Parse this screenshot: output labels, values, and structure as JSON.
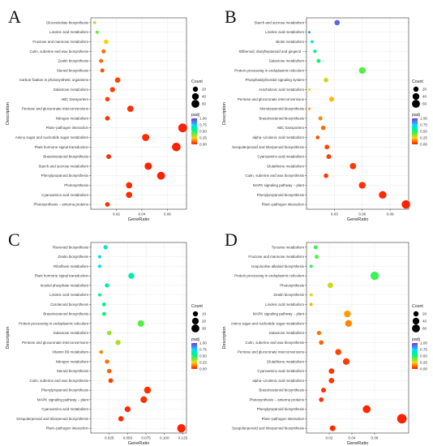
{
  "colors": {
    "low": "#ff1a00",
    "mid1": "#ffd000",
    "mid2": "#00ff66",
    "mid3": "#00d9ff",
    "high": "#8a2be2"
  },
  "chart_data": [
    {
      "type": "scatter",
      "panel": "A",
      "xlabel": "GeneRatio",
      "ylabel": "Description",
      "xlim": [
        0,
        0.075
      ],
      "xticks": [
        0.02,
        0.04,
        0.06
      ],
      "xtick_labels": [
        "0.02",
        "0.04",
        "0.06"
      ],
      "legend": {
        "count_title": "Count",
        "count_values": [
          20,
          40,
          60
        ],
        "count_labels": [
          "20",
          "40",
          "60"
        ],
        "count_range": [
          1,
          70
        ],
        "padj_title": "padj",
        "padj_values": [
          1.0,
          0.75,
          0.5,
          0.25,
          0.0
        ],
        "padj_labels": [
          "1.00",
          "0.75",
          "0.50",
          "0.25",
          "0.00"
        ]
      },
      "categories": [
        "Glucosinolate biosynthesis",
        "Linoleic acid metabolism",
        "Fructose and mannose metabolism",
        "Cutin, suberine and wax biosynthesis",
        "Zeatin biosynthesis",
        "Steroid biosynthesis",
        "Carbon fixation in photosynthetic organisms",
        "Galactose metabolism",
        "ABC transporters",
        "Pentose and glucuronate interconversions",
        "Nitrogen metabolism",
        "Plant−pathogen interaction",
        "Amino sugar and nucleotide sugar metabolism",
        "Plant hormone signal transduction",
        "Brassinosteroid biosynthesis",
        "Starch and sucrose metabolism",
        "Phenylpropanoid biosynthesis",
        "Photosynthesis",
        "Cyanoamino acid metabolism",
        "Photosynthesis − antenna proteins"
      ],
      "gene_ratio": [
        0.003,
        0.005,
        0.012,
        0.01,
        0.008,
        0.009,
        0.021,
        0.017,
        0.013,
        0.031,
        0.013,
        0.072,
        0.043,
        0.067,
        0.014,
        0.045,
        0.055,
        0.03,
        0.03,
        0.013
      ],
      "count": [
        3,
        5,
        13,
        11,
        9,
        10,
        23,
        19,
        14,
        34,
        14,
        78,
        47,
        73,
        15,
        49,
        60,
        33,
        33,
        14
      ],
      "padj": [
        0.35,
        0.4,
        0.25,
        0.12,
        0.1,
        0.08,
        0.06,
        0.05,
        0.05,
        0.03,
        0.03,
        0.01,
        0.02,
        0.01,
        0.02,
        0.01,
        0.01,
        0.02,
        0.02,
        0.03
      ]
    },
    {
      "type": "scatter",
      "panel": "B",
      "xlabel": "GeneRatio",
      "ylabel": "Description",
      "xlim": [
        0,
        0.11
      ],
      "xticks": [
        0.03,
        0.06,
        0.09
      ],
      "xtick_labels": [
        "0.03",
        "0.06",
        "0.09"
      ],
      "legend": {
        "count_title": "Count",
        "count_values": [
          20,
          40,
          60
        ],
        "count_labels": [
          "20",
          "40",
          "60"
        ],
        "count_range": [
          1,
          70
        ],
        "padj_title": "padj",
        "padj_values": [
          1.0,
          0.75,
          0.5,
          0.25,
          0.0
        ],
        "padj_labels": [
          "1.00",
          "0.75",
          "0.50",
          "0.25",
          "0.00"
        ]
      },
      "categories": [
        "Starch and sucrose metabolism",
        "Linoleic acid metabolism",
        "Biotin metabolism",
        "Stilbenoid, diarylheptanoid and gingerol −",
        "Galactose metabolism",
        "Protein processing in endoplasmic reticulum",
        "Phosphatidylinositol signaling system",
        "Arachidonic acid metabolism",
        "Pentose and glucuronate interconversions",
        "Monoterpenoid biosynthesis",
        "Brassinosteroid biosynthesis",
        "ABC transporters",
        "alpha−Linolenic acid metabolism",
        "Sesquiterpenoid and triterpenoid biosynthesis",
        "Cyanoamino acid metabolism",
        "Glutathione metabolism",
        "Cutin, suberine and wax biosynthesis",
        "MAPK signaling pathway − plant",
        "Phenylpropanoid biosynthesis",
        "Plant−pathogen interaction"
      ],
      "gene_ratio": [
        0.033,
        0.003,
        0.006,
        0.009,
        0.013,
        0.06,
        0.021,
        0.003,
        0.027,
        0.003,
        0.015,
        0.018,
        0.012,
        0.022,
        0.024,
        0.05,
        0.021,
        0.06,
        0.082,
        0.107
      ],
      "count": [
        22,
        2,
        4,
        6,
        9,
        40,
        14,
        2,
        18,
        2,
        10,
        12,
        8,
        15,
        16,
        33,
        14,
        40,
        54,
        70
      ],
      "padj": [
        0.92,
        0.85,
        0.62,
        0.55,
        0.52,
        0.42,
        0.3,
        0.25,
        0.22,
        0.18,
        0.15,
        0.1,
        0.08,
        0.06,
        0.05,
        0.04,
        0.04,
        0.03,
        0.02,
        0.01
      ]
    },
    {
      "type": "scatter",
      "panel": "C",
      "xlabel": "GeneRatio",
      "ylabel": "Description",
      "xlim": [
        0,
        0.13
      ],
      "xticks": [
        0.025,
        0.05,
        0.075,
        0.1,
        0.125
      ],
      "xtick_labels": [
        "0.025",
        "0.050",
        "0.075",
        "0.100",
        "0.125"
      ],
      "legend": {
        "count_title": "Count",
        "count_values": [
          10,
          20,
          30
        ],
        "count_labels": [
          "10",
          "20",
          "30"
        ],
        "count_range": [
          1,
          35
        ],
        "padj_title": "padj",
        "padj_values": [
          1.0,
          0.75,
          0.5,
          0.25,
          0.0
        ],
        "padj_labels": [
          "1.00",
          "0.75",
          "0.50",
          "0.25",
          "0.00"
        ]
      },
      "categories": [
        "Flavonoid biosynthesis",
        "Zeatin biosynthesis",
        "Riboflavin metabolism",
        "Plant hormone signal transduction",
        "Inositol phosphate metabolism",
        "Linoleic acid metabolism",
        "Carotenoid biosynthesis",
        "Brassinosteroid biosynthesis",
        "Protein processing in endoplasmic reticulum",
        "Galactose metabolism",
        "Pentose and glucuronate interconversions",
        "Vitamin B6 metabolism",
        "Nitrogen metabolism",
        "Steroid biosynthesis",
        "Cutin, suberine and wax biosynthesis",
        "Phenylpropanoid biosynthesis",
        "MAPK signaling pathway − plant",
        "Cyanoamino acid metabolism",
        "Sesquiterpenoid and triterpenoid biosynthesis",
        "Plant−pathogen interaction"
      ],
      "gene_ratio": [
        0.02,
        0.012,
        0.012,
        0.055,
        0.022,
        0.012,
        0.018,
        0.018,
        0.068,
        0.025,
        0.037,
        0.014,
        0.022,
        0.025,
        0.027,
        0.077,
        0.072,
        0.05,
        0.041,
        0.123
      ],
      "count": [
        6,
        3,
        3,
        15,
        6,
        3,
        5,
        5,
        19,
        7,
        10,
        4,
        6,
        7,
        8,
        21,
        20,
        14,
        11,
        34
      ],
      "padj": [
        0.65,
        0.7,
        0.72,
        0.62,
        0.6,
        0.58,
        0.55,
        0.52,
        0.42,
        0.35,
        0.33,
        0.15,
        0.12,
        0.1,
        0.05,
        0.03,
        0.03,
        0.02,
        0.02,
        0.01
      ]
    },
    {
      "type": "scatter",
      "panel": "D",
      "xlabel": "GeneRatio",
      "ylabel": "Description",
      "xlim": [
        0,
        0.09
      ],
      "xticks": [
        0.02,
        0.04,
        0.06
      ],
      "xtick_labels": [
        "0.02",
        "0.04",
        "0.06"
      ],
      "legend": {
        "count_title": "Count",
        "count_values": [
          20,
          40,
          60
        ],
        "count_labels": [
          "20",
          "40",
          "60"
        ],
        "count_range": [
          1,
          70
        ],
        "padj_title": "padj",
        "padj_values": [
          1.0,
          0.75,
          0.5,
          0.25,
          0.0
        ],
        "padj_labels": [
          "1.00",
          "0.75",
          "0.50",
          "0.25",
          "0.00"
        ]
      },
      "categories": [
        "Tyrosine metabolism",
        "Fructose and mannose metabolism",
        "Isoquinoline alkaloid biosynthesis",
        "Protein processing in endoplasmic reticulum",
        "Photosynthesis",
        "Zeatin biosynthesis",
        "Linoleic acid metabolism",
        "MAPK signaling pathway − plant",
        "Amino sugar and nucleotide sugar metabolism",
        "Galactose metabolism",
        "Cutin, suberine and wax biosynthesis",
        "Pentose and glucuronate interconversions",
        "Glutathione metabolism",
        "Cyanoamino acid metabolism",
        "alpha−Linolenic acid metabolism",
        "Brassinosteroid biosynthesis",
        "Photosynthesis − antenna proteins",
        "Phenylpropanoid biosynthesis",
        "Plant−pathogen interaction",
        "Sesquiterpenoid and triterpenoid biosynthesis"
      ],
      "gene_ratio": [
        0.008,
        0.009,
        0.004,
        0.06,
        0.021,
        0.004,
        0.004,
        0.036,
        0.037,
        0.011,
        0.013,
        0.028,
        0.035,
        0.022,
        0.022,
        0.015,
        0.013,
        0.053,
        0.084,
        0.023
      ],
      "count": [
        9,
        10,
        4,
        66,
        23,
        4,
        4,
        40,
        41,
        12,
        14,
        31,
        38,
        24,
        24,
        17,
        14,
        58,
        92,
        25
      ],
      "padj": [
        0.45,
        0.42,
        0.48,
        0.45,
        0.3,
        0.25,
        0.2,
        0.18,
        0.15,
        0.12,
        0.1,
        0.06,
        0.05,
        0.04,
        0.04,
        0.03,
        0.03,
        0.02,
        0.01,
        0.02
      ]
    }
  ]
}
